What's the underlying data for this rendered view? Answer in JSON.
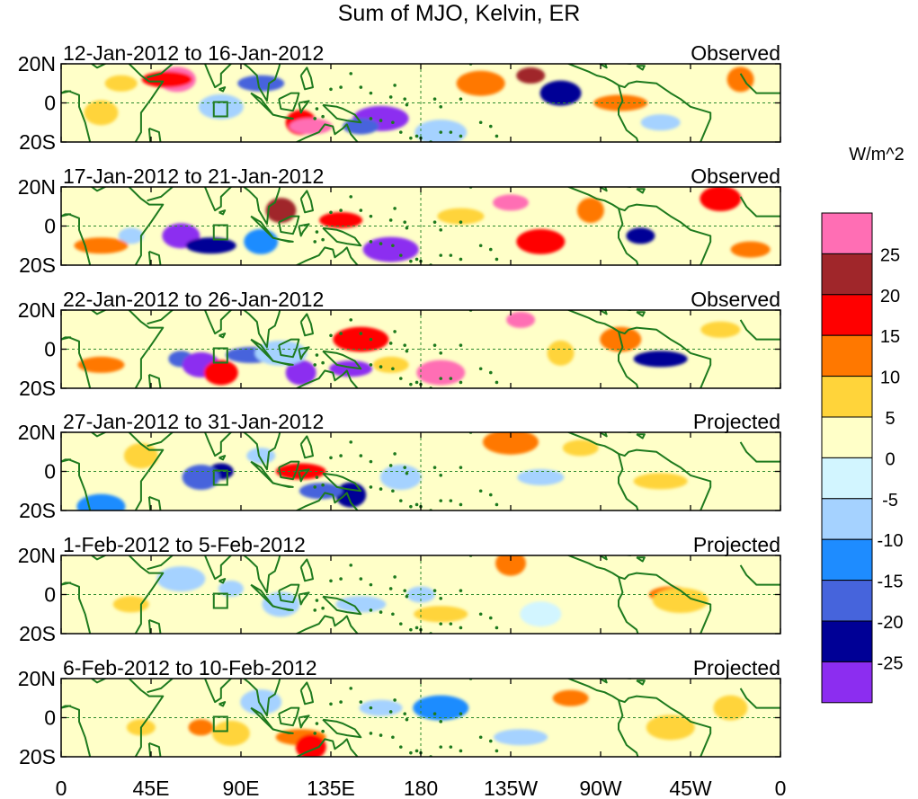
{
  "chart_data": {
    "type": "heatmap",
    "title": "Sum of MJO, Kelvin, ER",
    "xlabel": "",
    "ylabel": "",
    "x_ticks": [
      "0",
      "45E",
      "90E",
      "135E",
      "180",
      "135W",
      "90W",
      "45W",
      "0"
    ],
    "y_ticks": [
      "20N",
      "0",
      "20S"
    ],
    "colorbar": {
      "unit": "W/m^2",
      "levels": [
        "25",
        "20",
        "15",
        "10",
        "5",
        "0",
        "-5",
        "-10",
        "-15",
        "-20",
        "-25"
      ],
      "colors": [
        "#ff6eb4",
        "#a0262a",
        "#ff0000",
        "#ff7800",
        "#ffd43a",
        "#ffffc8",
        "#d2f5ff",
        "#a5d2ff",
        "#1e8cff",
        "#4664dc",
        "#000096",
        "#8c2df0"
      ]
    },
    "panels": [
      {
        "date_range": "12-Jan-2012 to 16-Jan-2012",
        "status": "Observed",
        "blobs": [
          [
            55,
            12,
            "#ff7800"
          ],
          [
            58,
            12,
            "#ff6eb4"
          ],
          [
            53,
            12,
            "#ff0000"
          ],
          [
            120,
            -10,
            "#ff0000"
          ],
          [
            125,
            -12,
            "#ff6eb4"
          ],
          [
            160,
            -8,
            "#8c2df0"
          ],
          [
            150,
            -12,
            "#4664dc"
          ],
          [
            210,
            10,
            "#ff7800"
          ],
          [
            235,
            14,
            "#a0262a"
          ],
          [
            250,
            5,
            "#000096"
          ],
          [
            280,
            0,
            "#ff7800"
          ],
          [
            20,
            -5,
            "#ffd43a"
          ],
          [
            100,
            10,
            "#4664dc"
          ],
          [
            340,
            12,
            "#ff7800"
          ],
          [
            300,
            -10,
            "#a5d2ff"
          ],
          [
            190,
            -15,
            "#a5d2ff"
          ],
          [
            30,
            10,
            "#ffd43a"
          ],
          [
            80,
            -2,
            "#a5d2ff"
          ]
        ]
      },
      {
        "date_range": "17-Jan-2012 to 21-Jan-2012",
        "status": "Observed",
        "blobs": [
          [
            35,
            -5,
            "#a5d2ff"
          ],
          [
            60,
            -5,
            "#8c2df0"
          ],
          [
            75,
            -10,
            "#000096"
          ],
          [
            110,
            8,
            "#a0262a"
          ],
          [
            140,
            3,
            "#ff0000"
          ],
          [
            165,
            -12,
            "#8c2df0"
          ],
          [
            225,
            12,
            "#ff6eb4"
          ],
          [
            240,
            -8,
            "#ff0000"
          ],
          [
            290,
            -5,
            "#000096"
          ],
          [
            330,
            14,
            "#ff0000"
          ],
          [
            20,
            -10,
            "#ff7800"
          ],
          [
            100,
            -8,
            "#1e8cff"
          ],
          [
            200,
            5,
            "#ffd43a"
          ],
          [
            265,
            8,
            "#ff7800"
          ],
          [
            345,
            -12,
            "#ff7800"
          ]
        ]
      },
      {
        "date_range": "22-Jan-2012 to 26-Jan-2012",
        "status": "Observed",
        "blobs": [
          [
            60,
            -5,
            "#4664dc"
          ],
          [
            70,
            -8,
            "#8c2df0"
          ],
          [
            95,
            -3,
            "#4664dc"
          ],
          [
            120,
            -12,
            "#8c2df0"
          ],
          [
            145,
            -10,
            "#8c2df0"
          ],
          [
            150,
            5,
            "#ff0000"
          ],
          [
            165,
            -8,
            "#ffd43a"
          ],
          [
            190,
            -12,
            "#ff6eb4"
          ],
          [
            230,
            15,
            "#ff6eb4"
          ],
          [
            280,
            5,
            "#ff7800"
          ],
          [
            300,
            -5,
            "#000096"
          ],
          [
            80,
            -12,
            "#ff0000"
          ],
          [
            20,
            -8,
            "#ff7800"
          ],
          [
            250,
            -2,
            "#ffd43a"
          ],
          [
            330,
            10,
            "#ffd43a"
          ],
          [
            110,
            -2,
            "#a5d2ff"
          ]
        ]
      },
      {
        "date_range": "27-Jan-2012 to 31-Jan-2012",
        "status": "Projected",
        "blobs": [
          [
            80,
            0,
            "#000096"
          ],
          [
            70,
            -3,
            "#4664dc"
          ],
          [
            120,
            0,
            "#ff0000"
          ],
          [
            145,
            -12,
            "#000096"
          ],
          [
            130,
            -10,
            "#4664dc"
          ],
          [
            225,
            15,
            "#ff7800"
          ],
          [
            260,
            12,
            "#ffd43a"
          ],
          [
            20,
            -18,
            "#1e8cff"
          ],
          [
            100,
            8,
            "#a5d2ff"
          ],
          [
            170,
            -3,
            "#a5d2ff"
          ],
          [
            300,
            -5,
            "#ffd43a"
          ],
          [
            40,
            8,
            "#ffd43a"
          ],
          [
            240,
            -3,
            "#a5d2ff"
          ]
        ]
      },
      {
        "date_range": "1-Feb-2012 to 5-Feb-2012",
        "status": "Projected",
        "blobs": [
          [
            85,
            3,
            "#a5d2ff"
          ],
          [
            110,
            -5,
            "#a5d2ff"
          ],
          [
            150,
            -5,
            "#a5d2ff"
          ],
          [
            225,
            16,
            "#ff7800"
          ],
          [
            305,
            0,
            "#ff7800"
          ],
          [
            310,
            -3,
            "#ffd43a"
          ],
          [
            35,
            -5,
            "#ffd43a"
          ],
          [
            60,
            8,
            "#a5d2ff"
          ],
          [
            180,
            0,
            "#a5d2ff"
          ],
          [
            240,
            -10,
            "#d2f5ff"
          ],
          [
            190,
            -10,
            "#ffd43a"
          ]
        ]
      },
      {
        "date_range": "6-Feb-2012 to 10-Feb-2012",
        "status": "Projected",
        "blobs": [
          [
            70,
            -5,
            "#ff7800"
          ],
          [
            85,
            -8,
            "#ffd43a"
          ],
          [
            120,
            -10,
            "#ff7800"
          ],
          [
            125,
            -15,
            "#ff0000"
          ],
          [
            160,
            5,
            "#a5d2ff"
          ],
          [
            190,
            5,
            "#1e8cff"
          ],
          [
            255,
            10,
            "#ff7800"
          ],
          [
            305,
            -5,
            "#ffd43a"
          ],
          [
            40,
            -5,
            "#ffd43a"
          ],
          [
            100,
            8,
            "#a5d2ff"
          ],
          [
            230,
            -10,
            "#a5d2ff"
          ],
          [
            335,
            5,
            "#ffd43a"
          ]
        ]
      }
    ]
  }
}
